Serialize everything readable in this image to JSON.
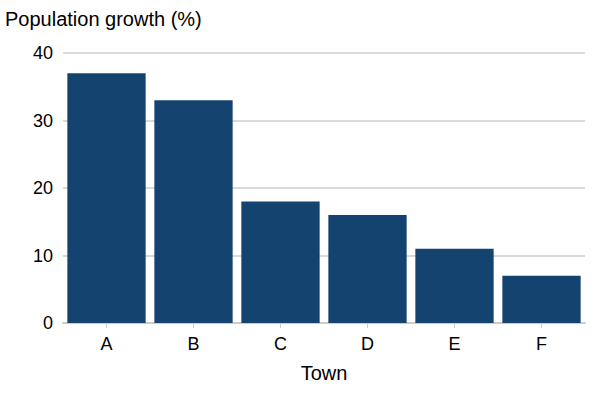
{
  "chart_data": {
    "type": "bar",
    "title": "Population growth (%)",
    "xlabel": "Town",
    "categories": [
      "A",
      "B",
      "C",
      "D",
      "E",
      "F"
    ],
    "values": [
      37,
      33,
      18,
      16,
      11,
      7
    ],
    "color": "#154370",
    "ylim": [
      0,
      40
    ],
    "yticks": [
      0,
      10,
      20,
      30,
      40
    ],
    "grid": true
  }
}
